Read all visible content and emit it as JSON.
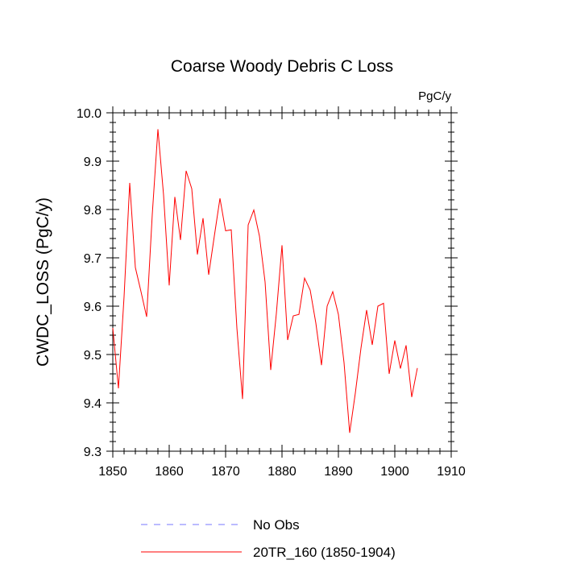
{
  "chart_data": {
    "type": "line",
    "title": "Coarse Woody Debris C Loss",
    "units": "PgC/y",
    "ylabel": "CWDC_LOSS  (PgC/y)",
    "xlabel": "",
    "xlim": [
      1850,
      1910
    ],
    "ylim": [
      9.3,
      10.0
    ],
    "x_ticks": [
      1850,
      1860,
      1870,
      1880,
      1890,
      1900,
      1910
    ],
    "y_ticks": [
      9.3,
      9.4,
      9.5,
      9.6,
      9.7,
      9.8,
      9.9,
      10.0
    ],
    "y_tick_labels": [
      "9.3",
      "9.4",
      "9.5",
      "9.6",
      "9.7",
      "9.8",
      "9.9",
      "10.0"
    ],
    "series": [
      {
        "name": "20TR_160 (1850-1904)",
        "color": "#ff0000",
        "x": [
          1850,
          1851,
          1852,
          1853,
          1854,
          1855,
          1856,
          1857,
          1858,
          1859,
          1860,
          1861,
          1862,
          1863,
          1864,
          1865,
          1866,
          1867,
          1868,
          1869,
          1870,
          1871,
          1872,
          1873,
          1874,
          1875,
          1876,
          1877,
          1878,
          1879,
          1880,
          1881,
          1882,
          1883,
          1884,
          1885,
          1886,
          1887,
          1888,
          1889,
          1890,
          1891,
          1892,
          1893,
          1894,
          1895,
          1896,
          1897,
          1898,
          1899,
          1900,
          1901,
          1902,
          1903,
          1904
        ],
        "values": [
          9.555,
          9.43,
          9.62,
          9.855,
          9.68,
          9.63,
          9.578,
          9.79,
          9.966,
          9.83,
          9.643,
          9.826,
          9.737,
          9.88,
          9.843,
          9.707,
          9.782,
          9.665,
          9.745,
          9.823,
          9.756,
          9.758,
          9.555,
          9.408,
          9.768,
          9.799,
          9.745,
          9.65,
          9.468,
          9.585,
          9.726,
          9.53,
          9.58,
          9.583,
          9.658,
          9.633,
          9.565,
          9.478,
          9.6,
          9.63,
          9.583,
          9.483,
          9.338,
          9.42,
          9.513,
          9.592,
          9.52,
          9.6,
          9.606,
          9.46,
          9.529,
          9.471,
          9.519,
          9.412,
          9.472
        ]
      }
    ],
    "legend": [
      {
        "label": "No Obs",
        "color": "#7777ff",
        "style": "dashed"
      },
      {
        "label": "20TR_160 (1850-1904)",
        "color": "#ff0000",
        "style": "solid"
      }
    ]
  }
}
